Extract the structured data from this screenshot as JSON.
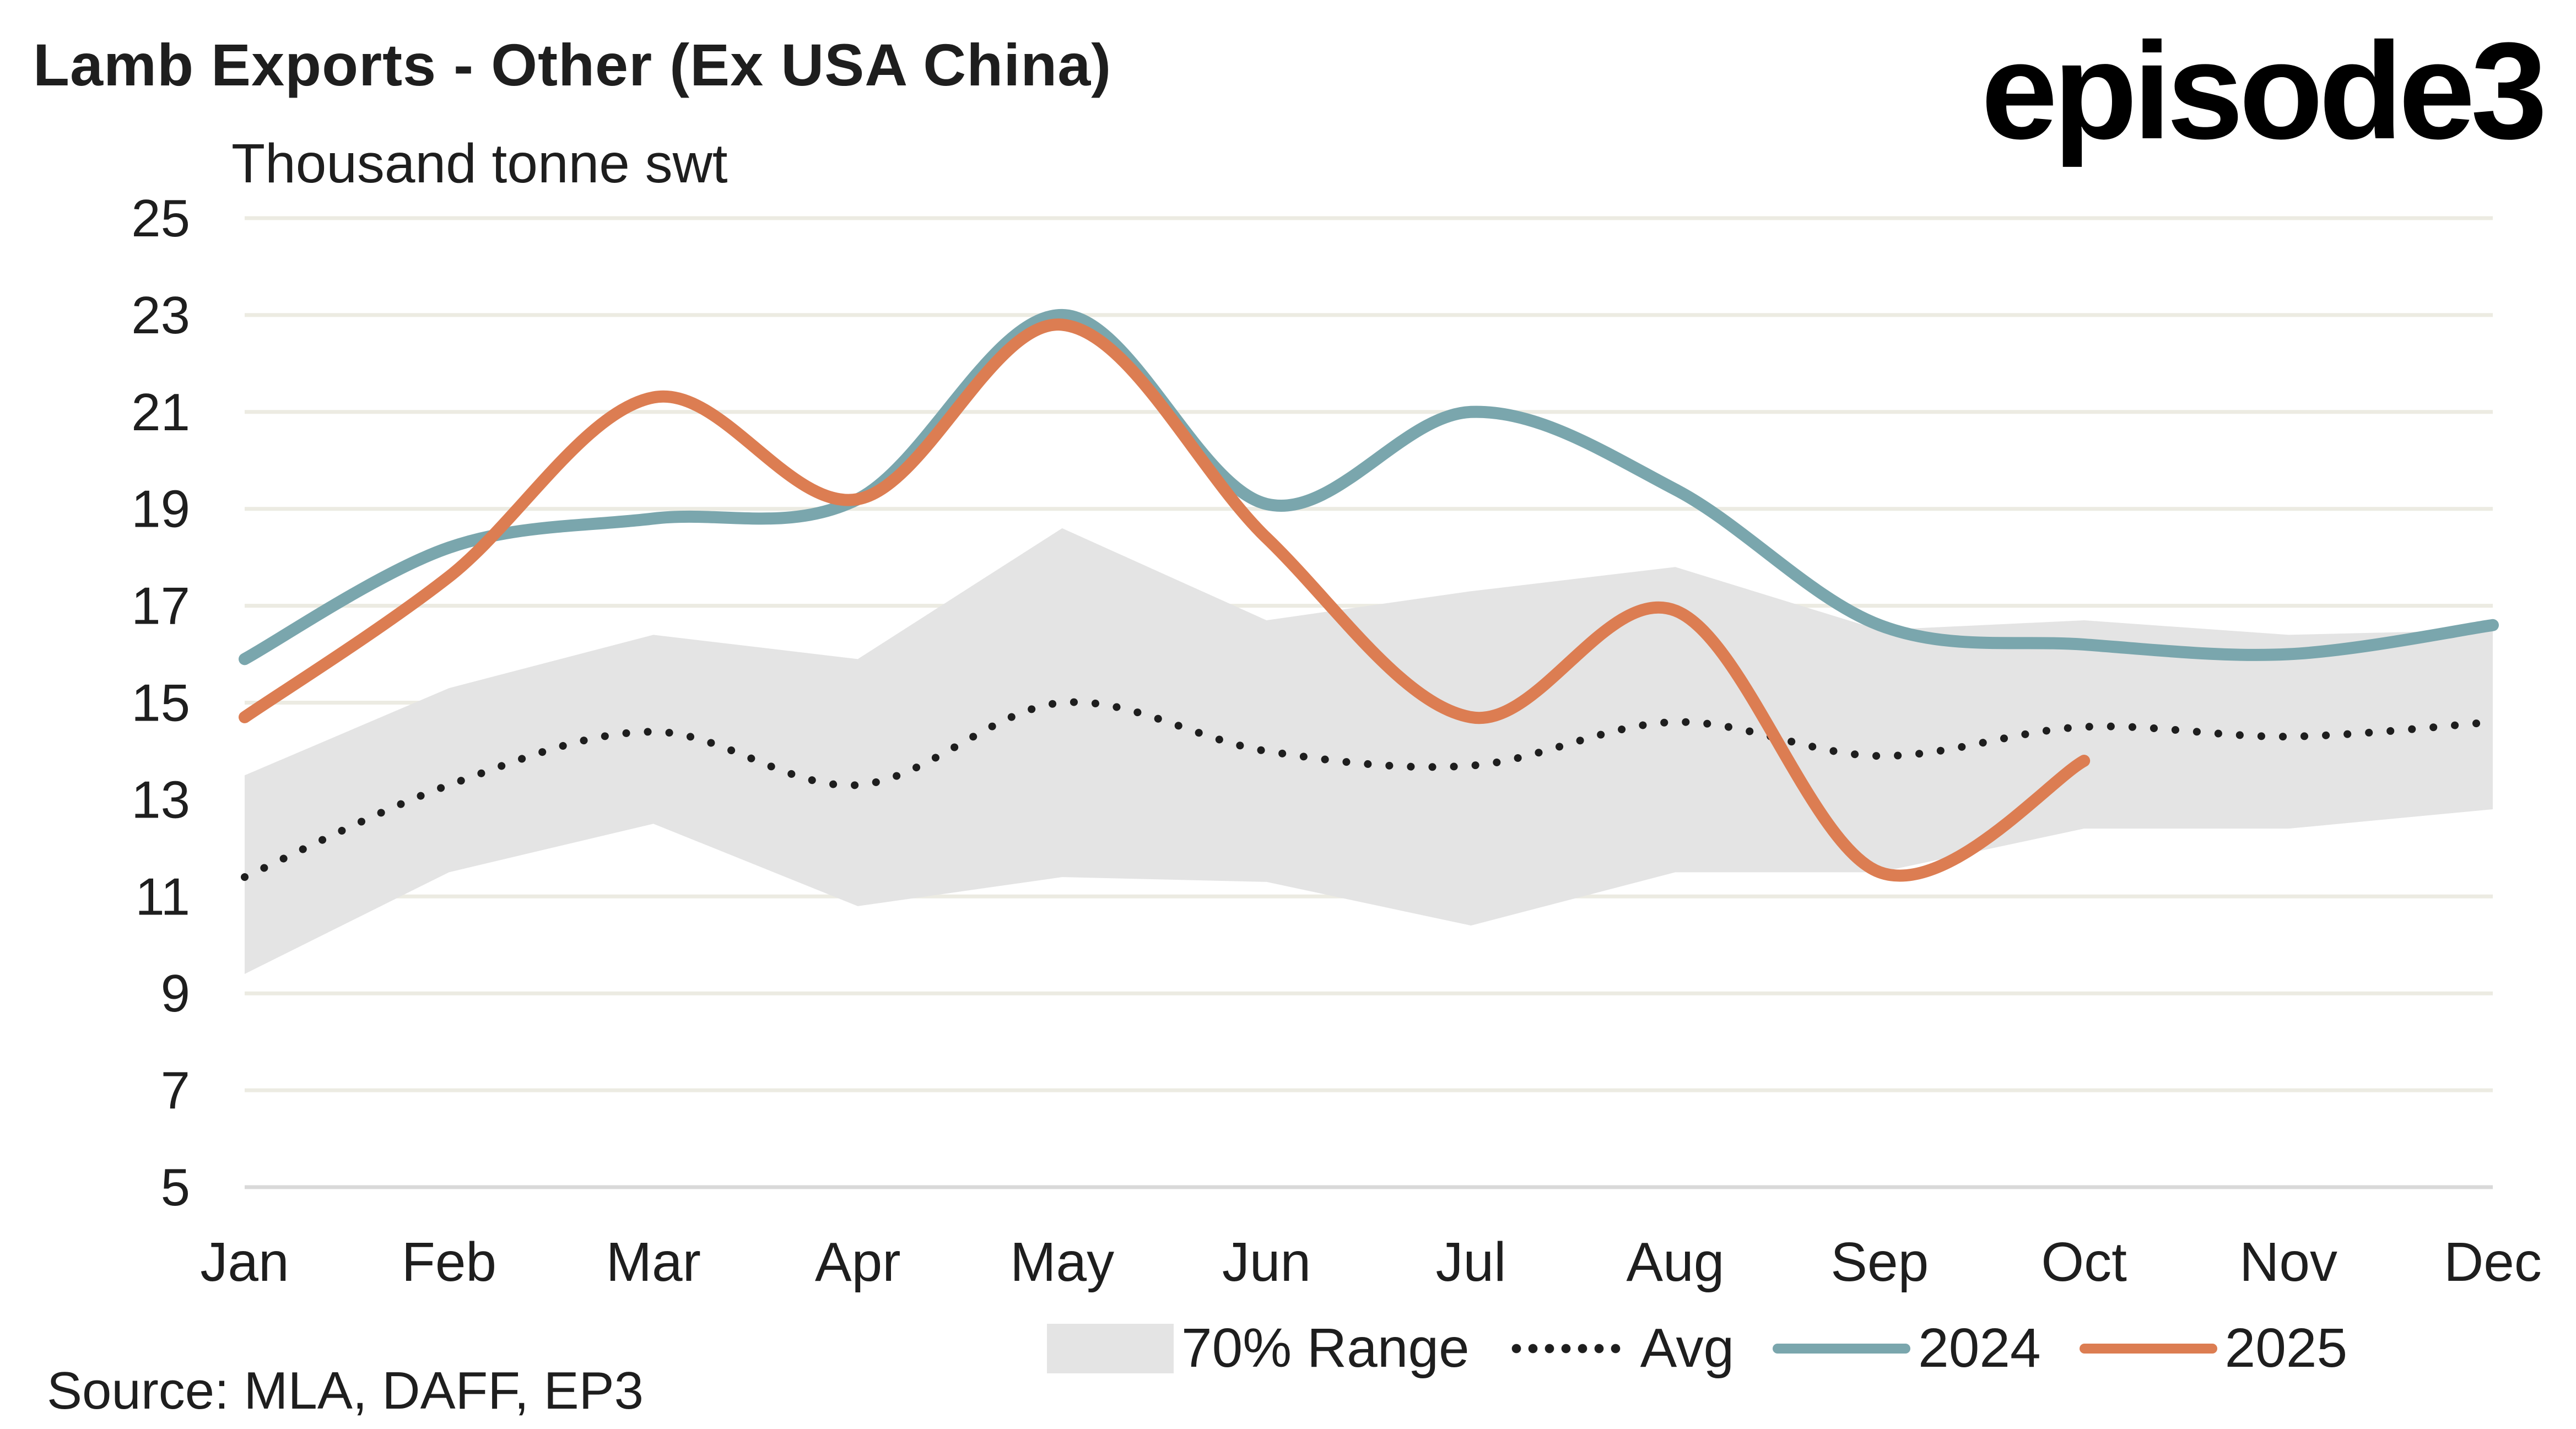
{
  "header": {
    "title": "Lamb Exports - Other (Ex USA China)",
    "logo": "episode3",
    "unit_label": "Thousand tonne swt"
  },
  "footer": {
    "source": "Source: MLA, DAFF, EP3"
  },
  "legend": {
    "range": "70% Range",
    "avg": "Avg",
    "y2024": "2024",
    "y2025": "2025"
  },
  "colors": {
    "range": "#e4e4e4",
    "avg": "#1e1e1e",
    "y2024": "#7aa6ad",
    "y2025": "#dc7d52",
    "grid": "#ecebe2"
  },
  "chart_data": {
    "type": "line",
    "title": "Lamb Exports - Other (Ex USA China)",
    "xlabel": "",
    "ylabel": "Thousand tonne swt",
    "ylim": [
      5,
      25
    ],
    "yticks": [
      5,
      7,
      9,
      11,
      13,
      15,
      17,
      19,
      21,
      23,
      25
    ],
    "grid": true,
    "legend_position": "bottom-right",
    "categories": [
      "Jan",
      "Feb",
      "Mar",
      "Apr",
      "May",
      "Jun",
      "Jul",
      "Aug",
      "Sep",
      "Oct",
      "Nov",
      "Dec"
    ],
    "range": {
      "name": "70% Range",
      "upper": [
        13.5,
        15.3,
        16.4,
        15.9,
        18.6,
        16.7,
        17.3,
        17.8,
        16.5,
        16.7,
        16.4,
        16.5
      ],
      "lower": [
        9.4,
        11.5,
        12.5,
        10.8,
        11.4,
        11.3,
        10.4,
        11.5,
        11.5,
        12.4,
        12.4,
        12.8
      ]
    },
    "series": [
      {
        "name": "Avg",
        "style": "dotted",
        "values": [
          11.4,
          13.3,
          14.4,
          13.3,
          15.0,
          14.0,
          13.7,
          14.6,
          13.9,
          14.5,
          14.3,
          14.6
        ]
      },
      {
        "name": "2024",
        "style": "solid",
        "values": [
          15.9,
          18.2,
          18.8,
          19.2,
          23.0,
          19.1,
          21.0,
          19.4,
          16.6,
          16.2,
          16.0,
          16.6
        ]
      },
      {
        "name": "2025",
        "style": "solid",
        "values": [
          14.7,
          17.6,
          21.3,
          19.2,
          22.8,
          18.4,
          14.7,
          16.9,
          11.5,
          13.8,
          null,
          null
        ]
      }
    ]
  }
}
